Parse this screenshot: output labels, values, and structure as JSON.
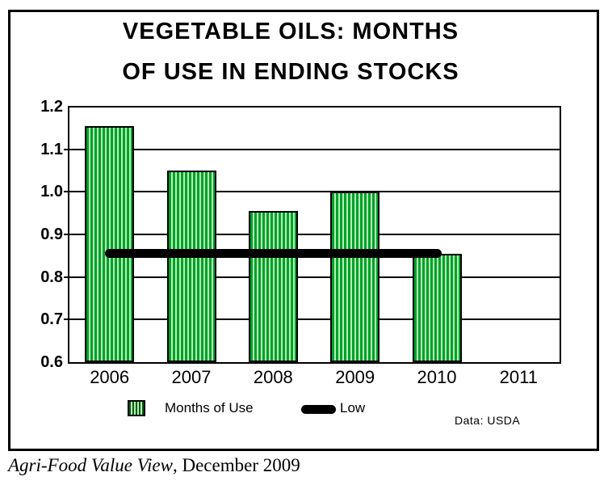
{
  "title": {
    "line1": "VEGETABLE OILS: MONTHS",
    "line2": "OF USE IN ENDING STOCKS"
  },
  "chart_data": {
    "type": "bar",
    "categories": [
      "2006",
      "2007",
      "2008",
      "2009",
      "2010",
      "2011"
    ],
    "series": [
      {
        "name": "Months of Use",
        "type": "bar",
        "values": [
          1.155,
          1.05,
          0.955,
          1.0,
          0.855,
          null
        ]
      },
      {
        "name": "Low",
        "type": "line",
        "values": [
          0.855,
          0.855,
          0.855,
          0.855,
          0.855,
          null
        ]
      }
    ],
    "title": "VEGETABLE OILS: MONTHS OF USE IN ENDING STOCKS",
    "xlabel": "",
    "ylabel": "",
    "ylim": [
      0.6,
      1.2
    ],
    "yticks": [
      0.6,
      0.7,
      0.8,
      0.9,
      1.0,
      1.1,
      1.2
    ],
    "grid": true,
    "legend_position": "bottom",
    "bar_stripe_dark": "#00a02a",
    "bar_stripe_light": "#b5f2b5",
    "line_color": "#000000"
  },
  "legend": {
    "items": [
      {
        "label": "Months of Use",
        "swatch": "green-striped-box"
      },
      {
        "label": "Low",
        "swatch": "thick-black-line"
      }
    ]
  },
  "source_note": "Data: USDA",
  "caption": {
    "italic_part": "Agri-Food Value View",
    "regular_part": ", December 2009"
  }
}
